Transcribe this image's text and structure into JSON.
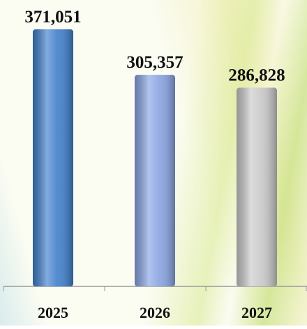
{
  "chart_data": {
    "type": "bar",
    "categories": [
      "2025",
      "2026",
      "2027"
    ],
    "values": [
      371051,
      305357,
      286828
    ],
    "value_labels": [
      "371,051",
      "305,357",
      "286,828"
    ],
    "colors": [
      "#3f7fcc",
      "#87a4e2",
      "#c9c9c9"
    ]
  }
}
